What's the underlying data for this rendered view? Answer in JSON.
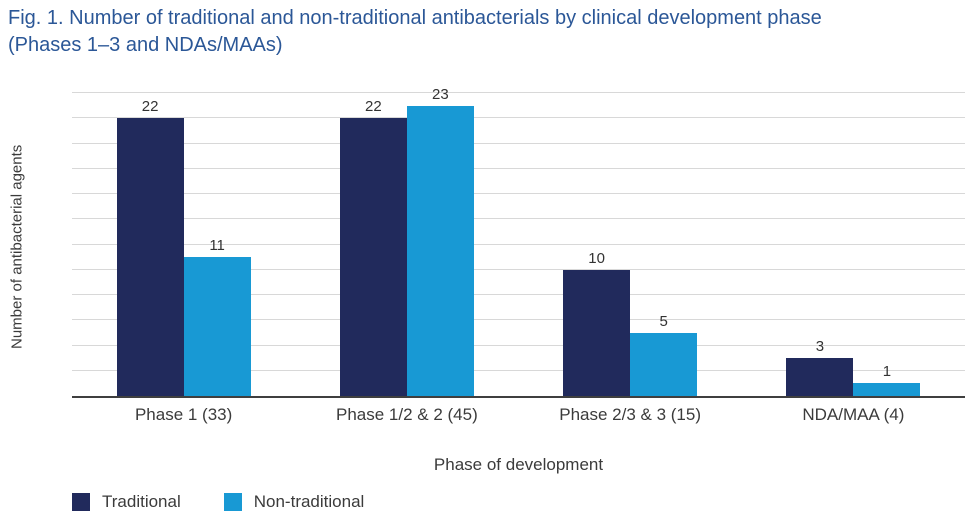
{
  "figure": {
    "title_line1": "Fig. 1. Number of traditional and non-traditional antibacterials by clinical development phase",
    "title_line2": "(Phases 1–3 and NDAs/MAAs)"
  },
  "chart_data": {
    "type": "bar",
    "title": "Fig. 1. Number of traditional and non-traditional antibacterials by clinical development phase (Phases 1–3 and NDAs/MAAs)",
    "categories": [
      "Phase 1 (33)",
      "Phase 1/2 & 2 (45)",
      "Phase 2/3 & 3 (15)",
      "NDA/MAA (4)"
    ],
    "series": [
      {
        "name": "Traditional",
        "color": "#212A5C",
        "values": [
          22,
          22,
          10,
          3
        ]
      },
      {
        "name": "Non-traditional",
        "color": "#1899D4",
        "values": [
          11,
          23,
          5,
          1
        ]
      }
    ],
    "xlabel": "Phase of development",
    "ylabel": "Number of antibacterial agents",
    "ylim": [
      0,
      24
    ],
    "grid": true,
    "gridline_step": 2,
    "y_tick_labels_visible": false,
    "bar_value_labels": true,
    "legend_position": "bottom-left"
  },
  "colors": {
    "title_text": "#2B5797",
    "axis_text": "#3B3B3B",
    "value_label_text": "#333333",
    "gridline": "#D8D8D8",
    "axis_line": "#3F3F3F",
    "background": "#FFFFFF"
  }
}
